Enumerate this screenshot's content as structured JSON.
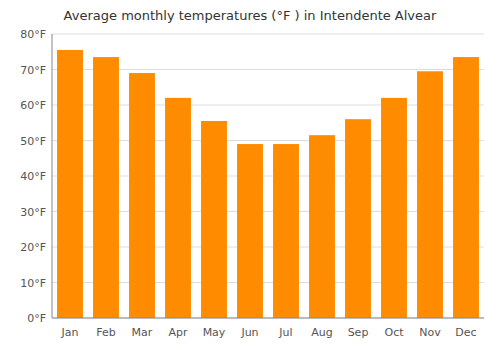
{
  "chart_data": {
    "type": "bar",
    "title": "Average monthly temperatures (°F ) in Intendente Alvear",
    "categories": [
      "Jan",
      "Feb",
      "Mar",
      "Apr",
      "May",
      "Jun",
      "Jul",
      "Aug",
      "Sep",
      "Oct",
      "Nov",
      "Dec"
    ],
    "values": [
      75.5,
      73.5,
      69.0,
      62.0,
      55.5,
      49.0,
      49.0,
      51.5,
      56.0,
      62.0,
      69.5,
      73.5
    ],
    "color": "#FF8C00",
    "ylim": [
      0,
      80
    ],
    "yticks": [
      {
        "value": 0,
        "label": "0°F"
      },
      {
        "value": 10,
        "label": "10°F"
      },
      {
        "value": 20,
        "label": "20°F"
      },
      {
        "value": 30,
        "label": "30°F"
      },
      {
        "value": 40,
        "label": "40°F"
      },
      {
        "value": 50,
        "label": "50°F"
      },
      {
        "value": 60,
        "label": "60°F"
      },
      {
        "value": 70,
        "label": "70°F"
      },
      {
        "value": 80,
        "label": "80°F"
      }
    ],
    "grid": true
  }
}
